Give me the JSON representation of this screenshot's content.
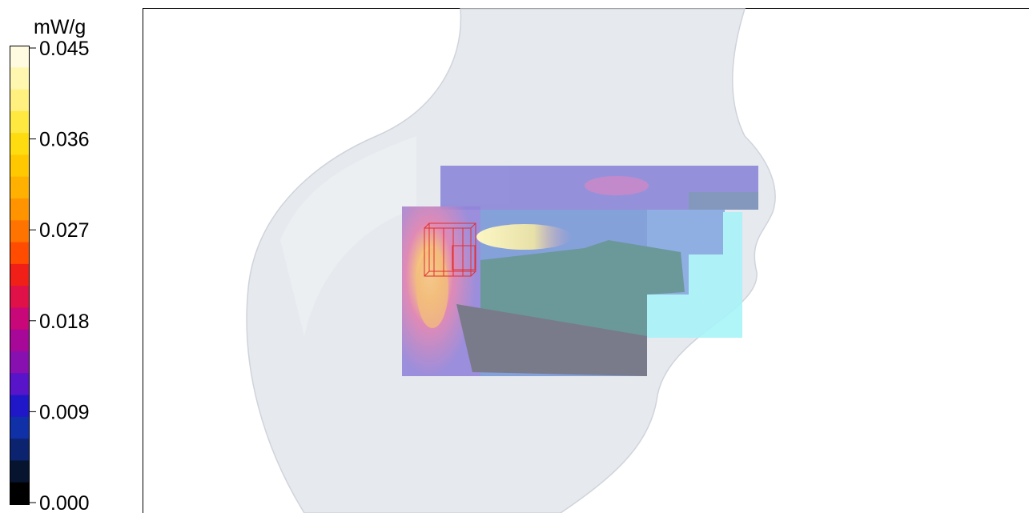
{
  "colorbar": {
    "unit": "mW/g",
    "ticks": [
      "0.045",
      "0.036",
      "0.027",
      "0.018",
      "0.009",
      "0.000"
    ]
  }
}
